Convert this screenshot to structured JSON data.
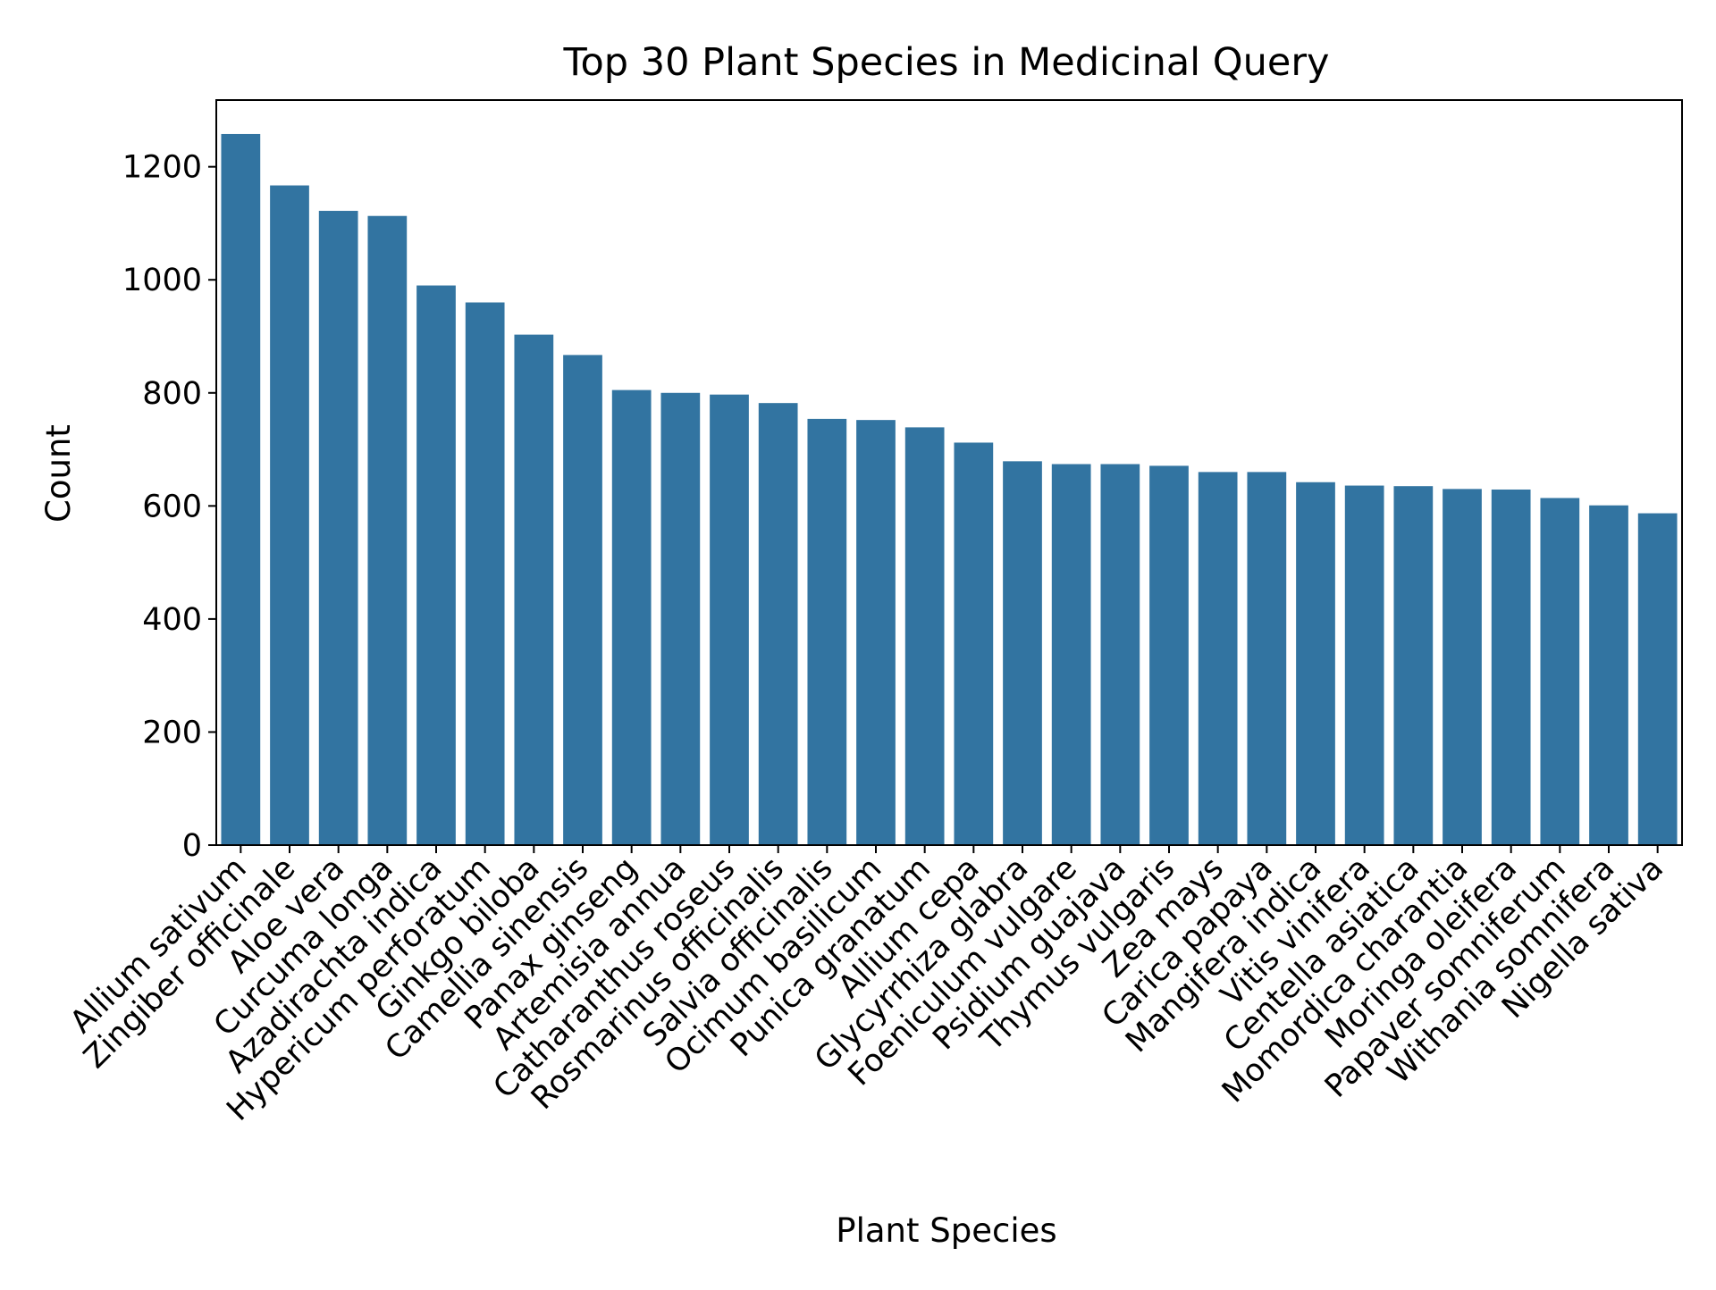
{
  "chart_data": {
    "type": "bar",
    "title": "Top 30 Plant Species in Medicinal Query",
    "xlabel": "Plant Species",
    "ylabel": "Count",
    "ylim": [
      0,
      1318
    ],
    "yticks": [
      0,
      200,
      400,
      600,
      800,
      1000,
      1200
    ],
    "grid": false,
    "bar_color": "#3274a1",
    "categories": [
      "Allium sativum",
      "Zingiber officinale",
      "Aloe vera",
      "Curcuma longa",
      "Azadirachta indica",
      "Hypericum perforatum",
      "Ginkgo biloba",
      "Camellia sinensis",
      "Panax ginseng",
      "Artemisia annua",
      "Catharanthus roseus",
      "Rosmarinus officinalis",
      "Salvia officinalis",
      "Ocimum basilicum",
      "Punica granatum",
      "Allium cepa",
      "Glycyrrhiza glabra",
      "Foeniculum vulgare",
      "Psidium guajava",
      "Thymus vulgaris",
      "Zea mays",
      "Carica papaya",
      "Mangifera indica",
      "Vitis vinifera",
      "Centella asiatica",
      "Momordica charantia",
      "Moringa oleifera",
      "Papaver somniferum",
      "Withania somnifera",
      "Nigella sativa"
    ],
    "values": [
      1258,
      1167,
      1122,
      1113,
      990,
      960,
      903,
      867,
      805,
      800,
      797,
      782,
      754,
      752,
      739,
      712,
      679,
      674,
      674,
      671,
      660,
      660,
      642,
      636,
      635,
      630,
      629,
      614,
      601,
      587
    ]
  }
}
